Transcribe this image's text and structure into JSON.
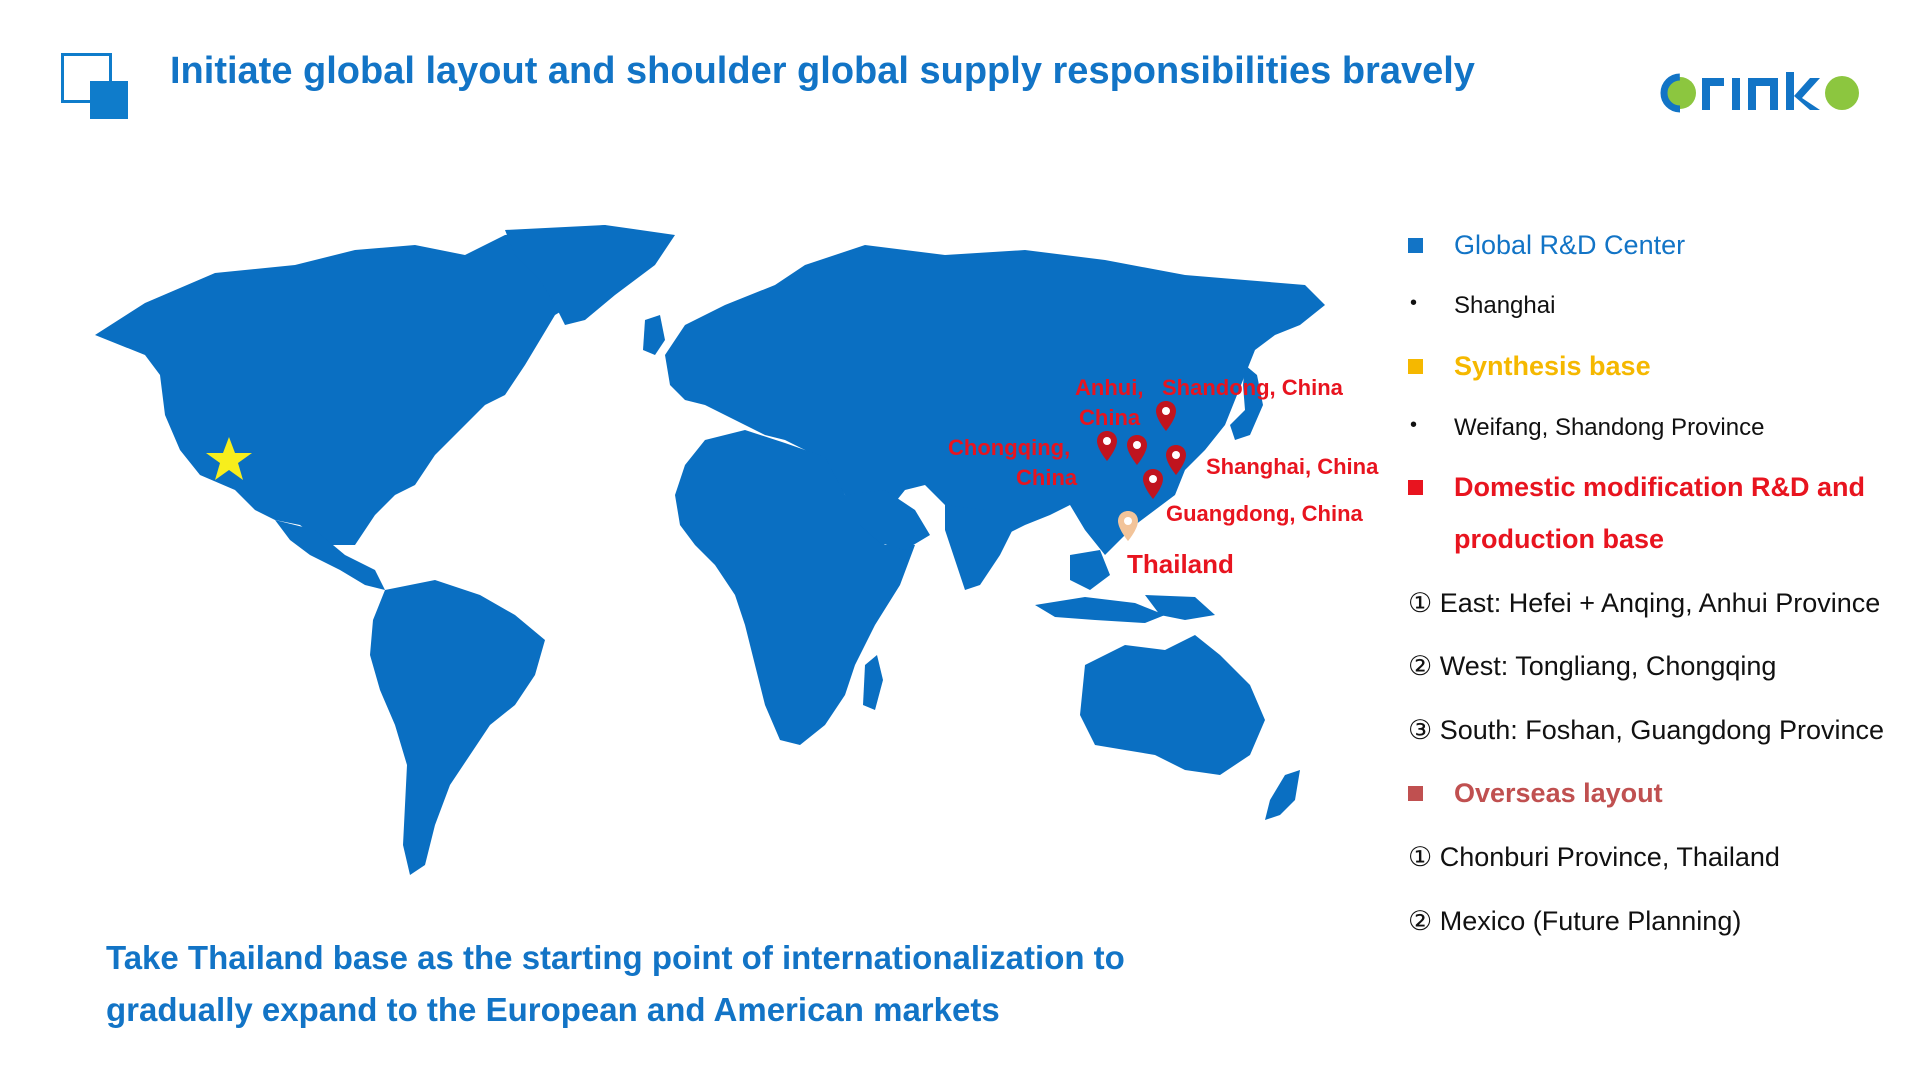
{
  "header": {
    "title": "Initiate global layout and shoulder global supply responsibilities bravely",
    "brand_name": "ORINKO",
    "brand_colors": {
      "primary": "#1274c6",
      "accent": "#8cc63f"
    }
  },
  "map": {
    "labels": {
      "anhui": "Anhui, China",
      "anhui_line1": "Anhui,",
      "anhui_line2": "China",
      "shandong": "Shandong, China",
      "chongqing_line1": "Chongqing,",
      "chongqing_line2": "China",
      "shanghai": "Shanghai, China",
      "guangdong": "Guangdong, China",
      "thailand": "Thailand"
    },
    "marker_colors": {
      "china": "#c0141e",
      "thailand": "#f2c49a",
      "star": "#f7ee1c",
      "land": "#0a6fc2"
    }
  },
  "legend": {
    "global_rd": {
      "label": "Global R&D Center",
      "color": "#1274c6",
      "items": [
        "Shanghai"
      ]
    },
    "synthesis": {
      "label": "Synthesis base",
      "color": "#f5b800",
      "items": [
        "Weifang, Shandong Province"
      ]
    },
    "domestic": {
      "label_line1": "Domestic modification R&D and",
      "label_line2": "production base",
      "color": "#e8141f",
      "items": [
        "① East: Hefei + Anqing, Anhui Province",
        "② West: Tongliang, Chongqing",
        "③ South: Foshan, Guangdong Province"
      ]
    },
    "overseas": {
      "label": "Overseas layout",
      "color": "#c05050",
      "items": [
        "① Chonburi Province, Thailand",
        "② Mexico (Future Planning)"
      ]
    }
  },
  "footer": {
    "line1": "Take Thailand base as the starting point of internationalization to",
    "line2": "gradually expand to the European and American markets"
  }
}
